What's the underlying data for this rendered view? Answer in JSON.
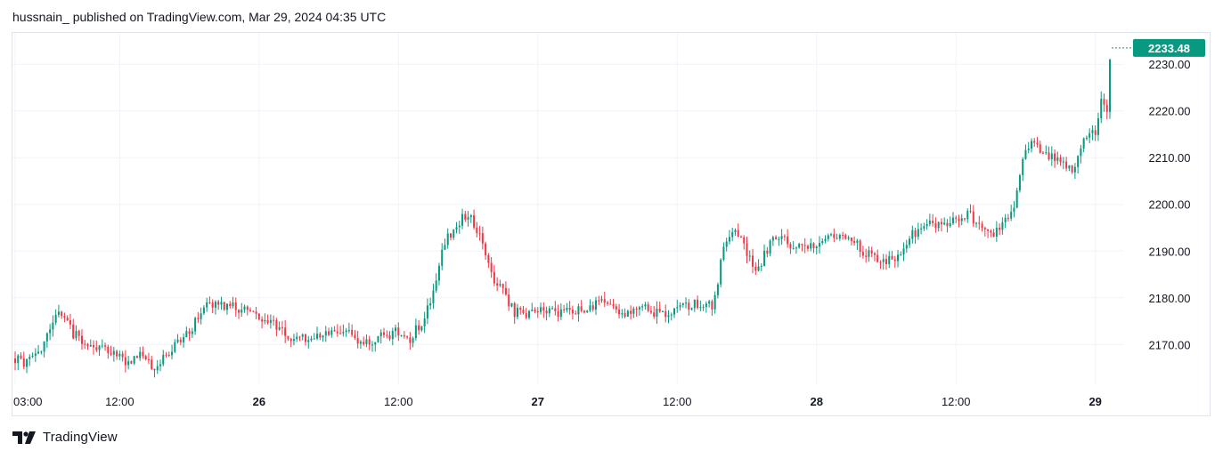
{
  "header": {
    "author": "hussnain_",
    "publish_text": "published on TradingView.com, Mar 29, 2024 04:35 UTC"
  },
  "footer": {
    "brand": "TradingView",
    "logo_icon": "tradingview-logo-icon"
  },
  "colors": {
    "up": "#089981",
    "down": "#f23645",
    "price_tag": "#089981",
    "grid": "#f0f3fa",
    "border": "#e0e3eb",
    "text": "#131722"
  },
  "chart_data": {
    "type": "candlestick",
    "symbol_timeframe": "15m",
    "last_price": "2233.48",
    "y_axis": {
      "ticks": [
        "2230.00",
        "2220.00",
        "2210.00",
        "2200.00",
        "2190.00",
        "2180.00",
        "2170.00"
      ],
      "tick_values": [
        2230,
        2220,
        2210,
        2200,
        2190,
        2180,
        2170
      ],
      "ylim": [
        2161.3,
        2236.7
      ],
      "side": "right"
    },
    "x_axis": {
      "labels": [
        {
          "text": "03:00",
          "t": 3,
          "bold": false
        },
        {
          "text": "12:00",
          "t": 12,
          "bold": false
        },
        {
          "text": "26",
          "t": 24,
          "bold": true
        },
        {
          "text": "12:00",
          "t": 36,
          "bold": false
        },
        {
          "text": "27",
          "t": 48,
          "bold": true
        },
        {
          "text": "12:00",
          "t": 60,
          "bold": false
        },
        {
          "text": "28",
          "t": 72,
          "bold": true
        },
        {
          "text": "12:00",
          "t": 84,
          "bold": false
        },
        {
          "text": "29",
          "t": 96,
          "bold": true
        }
      ],
      "t_range": [
        3,
        97.25
      ],
      "t_unit": "hours since Mar 25, 2024 00:00 UTC"
    },
    "anchors": [
      [
        3.0,
        2167.0
      ],
      [
        4.0,
        2166.0
      ],
      [
        5.0,
        2168.0
      ],
      [
        6.0,
        2174.0
      ],
      [
        7.0,
        2177.0
      ],
      [
        8.0,
        2172.0
      ],
      [
        9.0,
        2171.0
      ],
      [
        10.0,
        2170.0
      ],
      [
        11.0,
        2168.0
      ],
      [
        12.0,
        2167.0
      ],
      [
        13.0,
        2166.5
      ],
      [
        14.0,
        2167.5
      ],
      [
        15.0,
        2165.0
      ],
      [
        16.0,
        2168.0
      ],
      [
        17.0,
        2171.0
      ],
      [
        18.0,
        2173.0
      ],
      [
        19.0,
        2177.0
      ],
      [
        20.0,
        2179.0
      ],
      [
        21.0,
        2178.0
      ],
      [
        22.0,
        2178.0
      ],
      [
        23.0,
        2177.0
      ],
      [
        24.0,
        2176.0
      ],
      [
        25.0,
        2175.0
      ],
      [
        26.0,
        2173.0
      ],
      [
        27.0,
        2171.5
      ],
      [
        28.0,
        2171.0
      ],
      [
        29.0,
        2172.0
      ],
      [
        30.0,
        2173.0
      ],
      [
        31.0,
        2173.5
      ],
      [
        32.0,
        2172.0
      ],
      [
        33.0,
        2170.0
      ],
      [
        34.0,
        2171.0
      ],
      [
        35.0,
        2172.0
      ],
      [
        36.0,
        2173.0
      ],
      [
        37.0,
        2171.5
      ],
      [
        38.0,
        2175.0
      ],
      [
        39.0,
        2181.0
      ],
      [
        40.0,
        2192.0
      ],
      [
        41.0,
        2196.0
      ],
      [
        42.0,
        2198.0
      ],
      [
        43.0,
        2194.0
      ],
      [
        44.0,
        2185.0
      ],
      [
        45.0,
        2181.0
      ],
      [
        46.0,
        2177.0
      ],
      [
        47.0,
        2176.0
      ],
      [
        48.0,
        2177.0
      ],
      [
        49.0,
        2177.5
      ],
      [
        50.0,
        2177.0
      ],
      [
        51.0,
        2177.0
      ],
      [
        52.0,
        2178.0
      ],
      [
        53.0,
        2178.5
      ],
      [
        54.0,
        2179.0
      ],
      [
        55.0,
        2177.0
      ],
      [
        56.0,
        2176.0
      ],
      [
        57.0,
        2178.0
      ],
      [
        58.0,
        2177.0
      ],
      [
        59.0,
        2177.0
      ],
      [
        60.0,
        2178.0
      ],
      [
        61.0,
        2178.5
      ],
      [
        62.0,
        2179.0
      ],
      [
        63.0,
        2178.0
      ],
      [
        64.0,
        2190.0
      ],
      [
        65.0,
        2195.0
      ],
      [
        66.0,
        2189.0
      ],
      [
        67.0,
        2186.0
      ],
      [
        68.0,
        2192.0
      ],
      [
        69.0,
        2193.0
      ],
      [
        70.0,
        2191.0
      ],
      [
        71.0,
        2190.0
      ],
      [
        72.0,
        2191.0
      ],
      [
        73.0,
        2193.0
      ],
      [
        74.0,
        2194.0
      ],
      [
        75.0,
        2193.0
      ],
      [
        76.0,
        2190.0
      ],
      [
        77.0,
        2189.0
      ],
      [
        78.0,
        2188.0
      ],
      [
        79.0,
        2189.0
      ],
      [
        80.0,
        2193.0
      ],
      [
        81.0,
        2195.0
      ],
      [
        82.0,
        2196.0
      ],
      [
        83.0,
        2196.0
      ],
      [
        84.0,
        2197.0
      ],
      [
        85.0,
        2198.0
      ],
      [
        86.0,
        2195.0
      ],
      [
        87.0,
        2193.0
      ],
      [
        88.0,
        2196.0
      ],
      [
        89.0,
        2200.0
      ],
      [
        90.0,
        2212.0
      ],
      [
        91.0,
        2213.0
      ],
      [
        92.0,
        2210.0
      ],
      [
        93.0,
        2209.0
      ],
      [
        94.0,
        2207.0
      ],
      [
        95.0,
        2214.0
      ],
      [
        96.0,
        2215.0
      ],
      [
        96.5,
        2222.0
      ],
      [
        97.0,
        2220.0
      ],
      [
        97.25,
        2233.48
      ]
    ]
  }
}
